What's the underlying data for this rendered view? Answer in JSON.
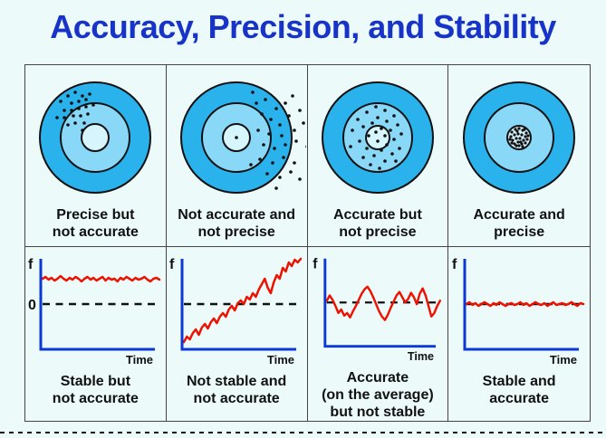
{
  "title": "Accuracy, Precision, and Stability",
  "colors": {
    "page_bg": "#ECFAFA",
    "title_text": "#1733C8",
    "table_border": "#444444",
    "target_outer": "#29B2EC",
    "target_middle": "#8AD8F8",
    "target_inner": "#D6F5FD",
    "target_stroke": "#111111",
    "dot": "#111111",
    "axis": "#0C38D6",
    "signal": "#EE1100",
    "zero_dash": "#111111",
    "caption_text": "#111111"
  },
  "target_geometry": {
    "outer_r": 61,
    "middle_r": 38
  },
  "columns": [
    {
      "target_caption": [
        "Precise but",
        "not accurate"
      ],
      "plot_caption": [
        "Stable but",
        "not accurate"
      ],
      "inner_r": 15,
      "dot_r": 1.8,
      "dots": [
        [
          -38,
          -40
        ],
        [
          -30,
          -46
        ],
        [
          -22,
          -50
        ],
        [
          -14,
          -46
        ],
        [
          -26,
          -38
        ],
        [
          -18,
          -40
        ],
        [
          -10,
          -42
        ],
        [
          -34,
          -30
        ],
        [
          -26,
          -30
        ],
        [
          -18,
          -32
        ],
        [
          -10,
          -34
        ],
        [
          -42,
          -22
        ],
        [
          -34,
          -22
        ],
        [
          -24,
          -24
        ],
        [
          -16,
          -24
        ],
        [
          -8,
          -26
        ],
        [
          -30,
          -14
        ],
        [
          -22,
          -16
        ],
        [
          -12,
          -16
        ],
        [
          -6,
          -48
        ],
        [
          -2,
          -36
        ],
        [
          -14,
          -8
        ]
      ],
      "plot": {
        "f_label": "f",
        "zero_label": "0",
        "time_label": "Time",
        "series": [
          30,
          28,
          31,
          29,
          32,
          30,
          27,
          30,
          32,
          29,
          31,
          28,
          30,
          33,
          30,
          28,
          31,
          29,
          32,
          30,
          28,
          32,
          29,
          31,
          30,
          33,
          29,
          31,
          28,
          30,
          32,
          29,
          31,
          30,
          28,
          31,
          33,
          30,
          29,
          31
        ]
      }
    },
    {
      "target_caption": [
        "Not accurate and",
        "not precise"
      ],
      "plot_caption": [
        "Not stable and",
        "not accurate"
      ],
      "inner_r": 15,
      "dot_r": 1.8,
      "dots": [
        [
          0,
          0
        ],
        [
          18,
          -50
        ],
        [
          32,
          -42
        ],
        [
          44,
          -32
        ],
        [
          54,
          -38
        ],
        [
          62,
          -46
        ],
        [
          28,
          -26
        ],
        [
          38,
          -20
        ],
        [
          48,
          -14
        ],
        [
          58,
          -24
        ],
        [
          70,
          -30
        ],
        [
          24,
          -8
        ],
        [
          36,
          -4
        ],
        [
          50,
          -2
        ],
        [
          64,
          -8
        ],
        [
          74,
          -16
        ],
        [
          30,
          8
        ],
        [
          42,
          12
        ],
        [
          54,
          8
        ],
        [
          66,
          4
        ],
        [
          78,
          10
        ],
        [
          26,
          24
        ],
        [
          40,
          28
        ],
        [
          52,
          22
        ],
        [
          64,
          28
        ],
        [
          34,
          40
        ],
        [
          48,
          44
        ],
        [
          60,
          38
        ],
        [
          70,
          46
        ],
        [
          44,
          56
        ],
        [
          22,
          -38
        ],
        [
          16,
          30
        ]
      ],
      "plot": {
        "f_label": "f",
        "time_label": "Time",
        "series": [
          100,
          94,
          97,
          90,
          86,
          92,
          84,
          80,
          85,
          78,
          74,
          79,
          72,
          68,
          72,
          64,
          60,
          65,
          57,
          54,
          58,
          50,
          53,
          46,
          50,
          42,
          36,
          30,
          40,
          46,
          34,
          26,
          30,
          18,
          22,
          12,
          16,
          9,
          12,
          8
        ]
      }
    },
    {
      "target_caption": [
        "Accurate but",
        "not precise"
      ],
      "plot_caption": [
        "Accurate",
        "(on the average)",
        "but not stable"
      ],
      "inner_r": 13,
      "dot_r": 1.8,
      "dots": [
        [
          -2,
          -34
        ],
        [
          8,
          -30
        ],
        [
          -12,
          -28
        ],
        [
          18,
          -24
        ],
        [
          -22,
          -20
        ],
        [
          0,
          -22
        ],
        [
          10,
          -18
        ],
        [
          -6,
          -16
        ],
        [
          22,
          -14
        ],
        [
          -16,
          -12
        ],
        [
          -28,
          -8
        ],
        [
          4,
          -10
        ],
        [
          14,
          -8
        ],
        [
          -2,
          -6
        ],
        [
          26,
          -4
        ],
        [
          -10,
          -2
        ],
        [
          8,
          -2
        ],
        [
          18,
          2
        ],
        [
          -20,
          4
        ],
        [
          0,
          4
        ],
        [
          -30,
          10
        ],
        [
          10,
          8
        ],
        [
          24,
          12
        ],
        [
          -12,
          12
        ],
        [
          4,
          14
        ],
        [
          16,
          18
        ],
        [
          -4,
          20
        ],
        [
          -16,
          22
        ],
        [
          8,
          26
        ],
        [
          20,
          26
        ],
        [
          -8,
          30
        ],
        [
          2,
          34
        ]
      ],
      "plot": {
        "f_label": "f",
        "time_label": "Time",
        "series": [
          56,
          50,
          55,
          62,
          70,
          66,
          73,
          70,
          75,
          68,
          62,
          55,
          48,
          43,
          40,
          45,
          52,
          60,
          68,
          74,
          78,
          72,
          64,
          57,
          50,
          46,
          52,
          58,
          54,
          47,
          52,
          60,
          48,
          42,
          50,
          62,
          74,
          70,
          62,
          56
        ]
      }
    },
    {
      "target_caption": [
        "Accurate and",
        "precise"
      ],
      "plot_caption": [
        "Stable and",
        "accurate"
      ],
      "inner_r": 13,
      "dot_r": 1.6,
      "dots": [
        [
          -8,
          -6
        ],
        [
          -4,
          -9
        ],
        [
          0,
          -10
        ],
        [
          4,
          -8
        ],
        [
          8,
          -5
        ],
        [
          -9,
          -1
        ],
        [
          -5,
          -3
        ],
        [
          -1,
          -4
        ],
        [
          3,
          -3
        ],
        [
          7,
          -1
        ],
        [
          -7,
          3
        ],
        [
          -3,
          1
        ],
        [
          1,
          1
        ],
        [
          5,
          3
        ],
        [
          9,
          2
        ],
        [
          -5,
          7
        ],
        [
          -1,
          5
        ],
        [
          3,
          7
        ],
        [
          7,
          6
        ],
        [
          -8,
          6
        ],
        [
          0,
          9
        ],
        [
          -3,
          9
        ],
        [
          4,
          10
        ],
        [
          -10,
          2
        ],
        [
          10,
          -2
        ],
        [
          -2,
          -7
        ],
        [
          6,
          -9
        ],
        [
          2,
          5
        ]
      ],
      "plot": {
        "f_label": "f",
        "time_label": "Time",
        "series": [
          58,
          56,
          59,
          57,
          60,
          58,
          56,
          58,
          60,
          57,
          59,
          56,
          58,
          60,
          58,
          57,
          59,
          58,
          56,
          59,
          57,
          60,
          58,
          56,
          58,
          59,
          57,
          60,
          58,
          56,
          59,
          58,
          57,
          59,
          58,
          56,
          58,
          60,
          57,
          58
        ]
      }
    }
  ]
}
